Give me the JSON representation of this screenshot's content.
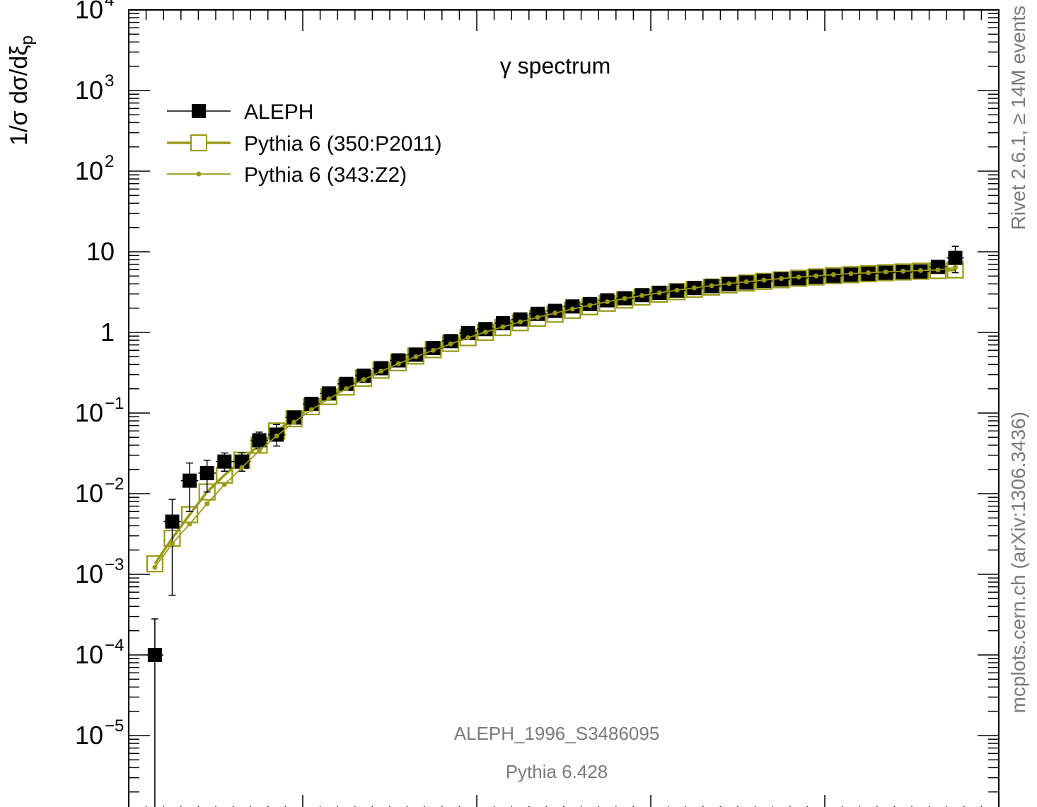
{
  "chart_data": {
    "type": "scatter",
    "title": "γ spectrum",
    "ylabel_main": "1/σ dσ/dξ",
    "ylabel_sub": "p",
    "y_scale": "log",
    "ylim": [
      1e-06,
      10000.0
    ],
    "xlim": [
      0,
      5
    ],
    "x_ticks": [
      1,
      2,
      3,
      4
    ],
    "y_tick_labels": [
      {
        "base": "10",
        "exp": "4"
      },
      {
        "base": "10",
        "exp": "3"
      },
      {
        "base": "10",
        "exp": "2"
      },
      {
        "base": "10",
        "exp": ""
      },
      {
        "base": "1",
        "exp": ""
      },
      {
        "base": "10",
        "exp": "−1"
      },
      {
        "base": "10",
        "exp": "−2"
      },
      {
        "base": "10",
        "exp": "−3"
      },
      {
        "base": "10",
        "exp": "−4"
      },
      {
        "base": "10",
        "exp": "−5"
      }
    ],
    "legend_position": "top-left",
    "series": [
      {
        "name": "ALEPH",
        "style": "data",
        "color": "#000000",
        "x": [
          0.15,
          0.25,
          0.35,
          0.45,
          0.55,
          0.65,
          0.75,
          0.85,
          0.95,
          1.05,
          1.15,
          1.25,
          1.35,
          1.45,
          1.55,
          1.65,
          1.75,
          1.85,
          1.95,
          2.05,
          2.15,
          2.25,
          2.35,
          2.45,
          2.55,
          2.65,
          2.75,
          2.85,
          2.95,
          3.05,
          3.15,
          3.25,
          3.35,
          3.45,
          3.55,
          3.65,
          3.75,
          3.85,
          3.95,
          4.05,
          4.15,
          4.25,
          4.35,
          4.45,
          4.55,
          4.65,
          4.75
        ],
        "y": [
          0.0001,
          0.0045,
          0.0145,
          0.018,
          0.025,
          0.025,
          0.046,
          0.054,
          0.088,
          0.13,
          0.175,
          0.23,
          0.29,
          0.36,
          0.45,
          0.53,
          0.64,
          0.78,
          0.98,
          1.1,
          1.3,
          1.45,
          1.7,
          1.85,
          2.1,
          2.25,
          2.5,
          2.65,
          2.9,
          3.1,
          3.3,
          3.55,
          3.75,
          3.95,
          4.15,
          4.35,
          4.55,
          4.7,
          4.9,
          5.05,
          5.2,
          5.35,
          5.5,
          5.6,
          5.7,
          6.5,
          8.4
        ],
        "yerr_low": [
          0.0001,
          0.00395,
          0.0085,
          0.0075,
          0.006,
          0.006,
          0.01,
          0.015,
          0.0,
          0.0,
          0.0,
          0.0,
          0.0,
          0.0,
          0.0,
          0.0,
          0.0,
          0.0,
          0.0,
          0.0,
          0.0,
          0.0,
          0.0,
          0.0,
          0.0,
          0.0,
          0.0,
          0.0,
          0.0,
          0.0,
          0.0,
          0.0,
          0.0,
          0.0,
          0.0,
          0.0,
          0.0,
          0.0,
          0.0,
          0.0,
          0.0,
          0.0,
          0.0,
          0.0,
          0.0,
          0.6,
          2.9
        ],
        "yerr_high": [
          0.00018,
          0.004,
          0.0095,
          0.008,
          0.007,
          0.007,
          0.012,
          0.018,
          0.0,
          0.0,
          0.0,
          0.0,
          0.0,
          0.0,
          0.0,
          0.0,
          0.0,
          0.0,
          0.0,
          0.0,
          0.0,
          0.0,
          0.0,
          0.0,
          0.0,
          0.0,
          0.0,
          0.0,
          0.0,
          0.0,
          0.0,
          0.0,
          0.0,
          0.0,
          0.0,
          0.0,
          0.0,
          0.0,
          0.0,
          0.0,
          0.0,
          0.0,
          0.0,
          0.0,
          0.0,
          0.8,
          3.3
        ]
      },
      {
        "name": "Pythia 6 (350:P2011)",
        "style": "open-squares",
        "color": "#999914",
        "x": [
          0.15,
          0.25,
          0.35,
          0.45,
          0.55,
          0.65,
          0.75,
          0.85,
          0.95,
          1.05,
          1.15,
          1.25,
          1.35,
          1.45,
          1.55,
          1.65,
          1.75,
          1.85,
          1.95,
          2.05,
          2.15,
          2.25,
          2.35,
          2.45,
          2.55,
          2.65,
          2.75,
          2.85,
          2.95,
          3.05,
          3.15,
          3.25,
          3.35,
          3.45,
          3.55,
          3.65,
          3.75,
          3.85,
          3.95,
          4.05,
          4.15,
          4.25,
          4.35,
          4.45,
          4.55,
          4.65,
          4.75
        ],
        "y": [
          0.00135,
          0.0028,
          0.0055,
          0.0105,
          0.017,
          0.026,
          0.04,
          0.06,
          0.085,
          0.12,
          0.16,
          0.21,
          0.27,
          0.34,
          0.42,
          0.51,
          0.61,
          0.73,
          0.86,
          1.0,
          1.15,
          1.32,
          1.5,
          1.68,
          1.88,
          2.08,
          2.3,
          2.52,
          2.75,
          2.98,
          3.2,
          3.42,
          3.65,
          3.88,
          4.1,
          4.3,
          4.5,
          4.7,
          4.88,
          5.05,
          5.2,
          5.35,
          5.5,
          5.62,
          5.75,
          5.85,
          5.95
        ]
      },
      {
        "name": "Pythia 6 (343:Z2)",
        "style": "dots",
        "color": "#999914",
        "x": [
          0.15,
          0.25,
          0.35,
          0.45,
          0.55,
          0.65,
          0.75,
          0.85,
          0.95,
          1.05,
          1.15,
          1.25,
          1.35,
          1.45,
          1.55,
          1.65,
          1.75,
          1.85,
          1.95,
          2.05,
          2.15,
          2.25,
          2.35,
          2.45,
          2.55,
          2.65,
          2.75,
          2.85,
          2.95,
          3.05,
          3.15,
          3.25,
          3.35,
          3.45,
          3.55,
          3.65,
          3.75,
          3.85,
          3.95,
          4.05,
          4.15,
          4.25,
          4.35,
          4.45,
          4.55,
          4.65,
          4.75
        ],
        "y": [
          0.00122,
          0.0024,
          0.0042,
          0.0075,
          0.013,
          0.021,
          0.034,
          0.052,
          0.077,
          0.11,
          0.15,
          0.2,
          0.26,
          0.33,
          0.41,
          0.5,
          0.6,
          0.72,
          0.86,
          1.01,
          1.17,
          1.35,
          1.54,
          1.74,
          1.95,
          2.17,
          2.4,
          2.63,
          2.87,
          3.1,
          3.34,
          3.57,
          3.8,
          4.03,
          4.25,
          4.46,
          4.66,
          4.85,
          5.03,
          5.2,
          5.36,
          5.5,
          5.63,
          5.75,
          5.86,
          5.96,
          6.4
        ]
      }
    ]
  },
  "annotations": {
    "analysis_id": "ALEPH_1996_S3486095",
    "generator": "Pythia 6.428",
    "side_top": "Rivet 2.6.1,  ≥ 14M events",
    "side_bottom": "mcplots.cern.ch (arXiv:1306.3436)"
  }
}
